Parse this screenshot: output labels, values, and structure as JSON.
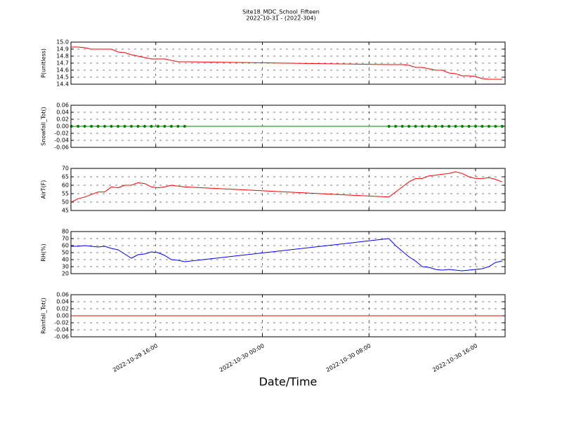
{
  "chart_data": {
    "type": "multi-line",
    "title": "Site18_MDC_School_Fifteen",
    "subtitle": "2022-10-31 - (2022-304)",
    "xlabel": "Date/Time",
    "grid": true,
    "xlim": [
      "2022-10-29 09:38",
      "2022-10-30 18:13"
    ],
    "xticks": [
      {
        "value": "2022-10-29 16:00",
        "label": "2022-10-29 16:00"
      },
      {
        "value": "2022-10-30 00:00",
        "label": "2022-10-30 00:00"
      },
      {
        "value": "2022-10-30 08:00",
        "label": "2022-10-30 08:00"
      },
      {
        "value": "2022-10-30 16:00",
        "label": "2022-10-30 16:00"
      }
    ],
    "x": [
      "2022-10-29 09:40",
      "2022-10-29 10:10",
      "2022-10-29 10:40",
      "2022-10-29 11:10",
      "2022-10-29 11:40",
      "2022-10-29 12:10",
      "2022-10-29 12:40",
      "2022-10-29 13:10",
      "2022-10-29 13:40",
      "2022-10-29 14:10",
      "2022-10-29 14:40",
      "2022-10-29 15:10",
      "2022-10-29 15:40",
      "2022-10-29 16:10",
      "2022-10-29 16:40",
      "2022-10-29 17:10",
      "2022-10-29 17:40",
      "2022-10-29 18:10",
      "2022-10-30 09:30",
      "2022-10-30 10:00",
      "2022-10-30 10:30",
      "2022-10-30 11:00",
      "2022-10-30 11:30",
      "2022-10-30 12:00",
      "2022-10-30 12:30",
      "2022-10-30 13:00",
      "2022-10-30 13:30",
      "2022-10-30 14:00",
      "2022-10-30 14:30",
      "2022-10-30 15:00",
      "2022-10-30 15:30",
      "2022-10-30 16:00",
      "2022-10-30 16:30",
      "2022-10-30 17:00",
      "2022-10-30 17:30",
      "2022-10-30 18:00"
    ],
    "panels": [
      {
        "ylabel": "P(unitless)",
        "ylim": [
          14.4,
          15.0
        ],
        "yticks": [
          14.4,
          14.5,
          14.6,
          14.7,
          14.8,
          14.9,
          {
            "value": 15.0,
            "label": "15.0"
          }
        ],
        "series": [
          {
            "color": "#ff0000",
            "marker": false,
            "values": [
              14.93,
              14.93,
              14.92,
              14.9,
              14.9,
              14.9,
              14.9,
              14.86,
              14.85,
              14.82,
              14.8,
              14.78,
              14.76,
              14.76,
              14.76,
              14.74,
              14.72,
              14.72,
              14.68,
              14.68,
              14.68,
              14.67,
              14.64,
              14.64,
              14.62,
              14.6,
              14.6,
              14.56,
              14.55,
              14.52,
              14.52,
              14.51,
              14.48,
              14.47,
              14.47,
              14.47
            ]
          }
        ]
      },
      {
        "ylabel": "Snowfall_Tot()",
        "ylim": [
          -0.06,
          0.06
        ],
        "yticks": [
          -0.06,
          -0.04,
          -0.02,
          {
            "value": 0,
            "label": "0.00"
          },
          0.02,
          0.04,
          0.06
        ],
        "series": [
          {
            "color": "#008000",
            "marker": true,
            "values": [
              0,
              0,
              0,
              0,
              0,
              0,
              0,
              0,
              0,
              0,
              0,
              0,
              0,
              0,
              0,
              0,
              0,
              0,
              0,
              0,
              0,
              0,
              0,
              0,
              0,
              0,
              0,
              0,
              0,
              0,
              0,
              0,
              0,
              0,
              0,
              0
            ]
          }
        ]
      },
      {
        "ylabel": "AirT(F)",
        "ylim": [
          45,
          70
        ],
        "yticks": [
          45,
          50,
          55,
          60,
          65,
          70
        ],
        "series": [
          {
            "color": "#ff0000",
            "marker": false,
            "values": [
              50,
              52,
              53,
              54.5,
              56,
              56,
              59,
              58.5,
              60,
              60,
              61.5,
              61,
              59,
              58.5,
              59,
              60,
              59.5,
              59,
              53,
              56,
              59,
              62,
              64,
              64,
              65.5,
              66,
              66.5,
              67,
              68,
              67,
              65,
              64,
              64,
              64.5,
              63.5,
              62
            ]
          }
        ]
      },
      {
        "ylabel": "RH(%)",
        "ylim": [
          20,
          80
        ],
        "yticks": [
          20,
          30,
          40,
          50,
          60,
          70,
          80
        ],
        "series": [
          {
            "color": "#0000ff",
            "marker": false,
            "values": [
              59,
              59,
              60,
              59,
              58,
              59,
              56,
              54,
              48,
              42,
              47,
              48,
              51,
              50,
              46,
              40,
              39,
              37,
              70,
              60,
              52,
              44,
              38,
              30,
              29,
              26,
              25,
              26,
              25,
              24,
              25,
              26,
              27,
              30,
              36,
              38
            ]
          }
        ]
      },
      {
        "ylabel": "Rainfall_Tot()",
        "ylim": [
          -0.06,
          0.06
        ],
        "yticks": [
          -0.06,
          -0.04,
          -0.02,
          {
            "value": 0,
            "label": "0.00"
          },
          0.02,
          0.04,
          0.06
        ],
        "series": [
          {
            "color": "#ff0000",
            "marker": false,
            "values": [
              0,
              0,
              0,
              0,
              0,
              0,
              0,
              0,
              0,
              0,
              0,
              0,
              0,
              0,
              0,
              0,
              0,
              0,
              0,
              0,
              0,
              0,
              0,
              0,
              0,
              0,
              0,
              0,
              0,
              0,
              0,
              0,
              0,
              0,
              0,
              0
            ]
          }
        ]
      }
    ]
  }
}
